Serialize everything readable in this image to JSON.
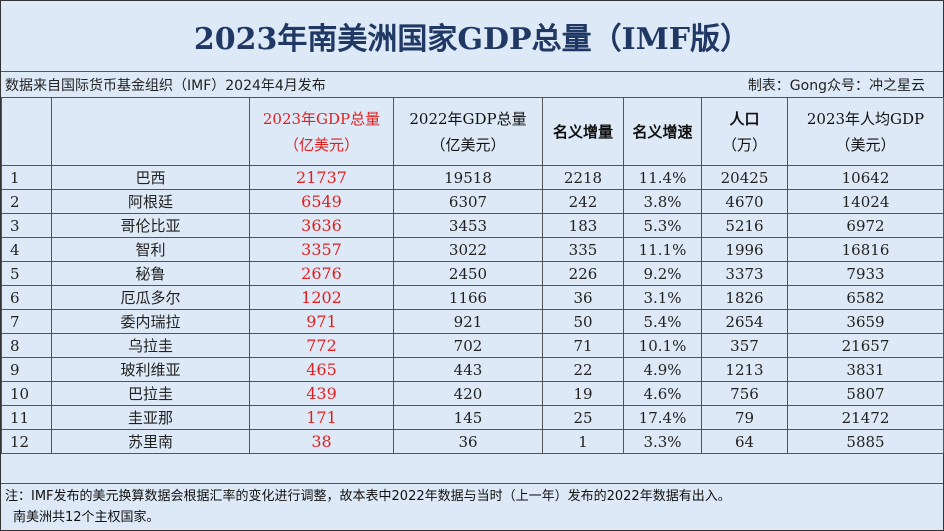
{
  "title": "2023年南美洲国家GDP总量（IMF版）",
  "source_text": "数据来自国际货币基金组织（IMF）2024年4月发布",
  "credit_text": "制表：Gong众号：冲之星云",
  "headers": {
    "country": "",
    "gdp2023_line1": "2023年GDP总量",
    "gdp2023_line2": "（亿美元）",
    "gdp2022_line1": "2022年GDP总量",
    "gdp2022_line2": "（亿美元）",
    "increase": "名义增量",
    "growth": "名义增速",
    "population_line1": "人口",
    "population_line2": "（万）",
    "percapita_line1": "2023年人均GDP",
    "percapita_line2": "（美元）"
  },
  "rows": [
    {
      "rank": "1",
      "country": "巴西",
      "gdp2023": "21737",
      "gdp2022": "19518",
      "increase": "2218",
      "growth": "11.4%",
      "population": "20425",
      "percapita": "10642"
    },
    {
      "rank": "2",
      "country": "阿根廷",
      "gdp2023": "6549",
      "gdp2022": "6307",
      "increase": "242",
      "growth": "3.8%",
      "population": "4670",
      "percapita": "14024"
    },
    {
      "rank": "3",
      "country": "哥伦比亚",
      "gdp2023": "3636",
      "gdp2022": "3453",
      "increase": "183",
      "growth": "5.3%",
      "population": "5216",
      "percapita": "6972"
    },
    {
      "rank": "4",
      "country": "智利",
      "gdp2023": "3357",
      "gdp2022": "3022",
      "increase": "335",
      "growth": "11.1%",
      "population": "1996",
      "percapita": "16816"
    },
    {
      "rank": "5",
      "country": "秘鲁",
      "gdp2023": "2676",
      "gdp2022": "2450",
      "increase": "226",
      "growth": "9.2%",
      "population": "3373",
      "percapita": "7933"
    },
    {
      "rank": "6",
      "country": "厄瓜多尔",
      "gdp2023": "1202",
      "gdp2022": "1166",
      "increase": "36",
      "growth": "3.1%",
      "population": "1826",
      "percapita": "6582"
    },
    {
      "rank": "7",
      "country": "委内瑞拉",
      "gdp2023": "971",
      "gdp2022": "921",
      "increase": "50",
      "growth": "5.4%",
      "population": "2654",
      "percapita": "3659"
    },
    {
      "rank": "8",
      "country": "乌拉圭",
      "gdp2023": "772",
      "gdp2022": "702",
      "increase": "71",
      "growth": "10.1%",
      "population": "357",
      "percapita": "21657"
    },
    {
      "rank": "9",
      "country": "玻利维亚",
      "gdp2023": "465",
      "gdp2022": "443",
      "increase": "22",
      "growth": "4.9%",
      "population": "1213",
      "percapita": "3831"
    },
    {
      "rank": "10",
      "country": "巴拉圭",
      "gdp2023": "439",
      "gdp2022": "420",
      "increase": "19",
      "growth": "4.6%",
      "population": "756",
      "percapita": "5807"
    },
    {
      "rank": "11",
      "country": "圭亚那",
      "gdp2023": "171",
      "gdp2022": "145",
      "increase": "25",
      "growth": "17.4%",
      "population": "79",
      "percapita": "21472"
    },
    {
      "rank": "12",
      "country": "苏里南",
      "gdp2023": "38",
      "gdp2022": "36",
      "increase": "1",
      "growth": "3.3%",
      "population": "64",
      "percapita": "5885"
    }
  ],
  "note_line1": "注：IMF发布的美元换算数据会根据汇率的变化进行调整，故本表中2022年数据与当时（上一年）发布的2022年数据有出入。",
  "note_line2": "南美洲共12个主权国家。",
  "colors": {
    "background": "#dde9f6",
    "title": "#1f3864",
    "highlight": "#e02020"
  }
}
